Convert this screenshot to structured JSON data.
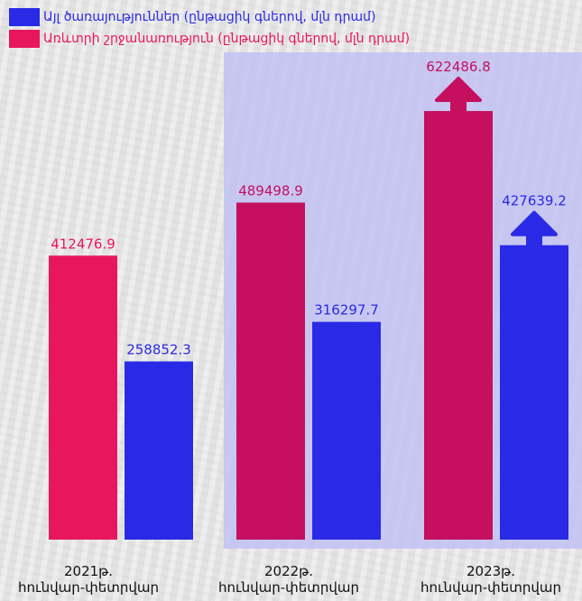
{
  "colors": {
    "blue": "#2a2ae6",
    "red": "#e8175d",
    "magenta": "#c4105f",
    "background": "#e9e9e9",
    "highlight": "#bebef5"
  },
  "legend": {
    "items": [
      {
        "label": "Այլ ծառայություններ (ընթացիկ գներով, մլն դրամ)",
        "color": "#2a2ae6"
      },
      {
        "label": "Առևտրի շրջանառություն (ընթացիկ գներով, մլն դրամ)",
        "color": "#e8175d"
      }
    ]
  },
  "chart_data": {
    "type": "bar",
    "categories": [
      {
        "line1": "2021թ.",
        "line2": "հունվար-փետրվար"
      },
      {
        "line1": "2022թ.",
        "line2": "հունվար-փետրվար"
      },
      {
        "line1": "2023թ.",
        "line2": "հունվար-փետրվար"
      }
    ],
    "series": [
      {
        "name": "Առևտրի շրջանառություն (ընթացիկ գներով, մլն դրամ)",
        "values": [
          412476.9,
          489498.9,
          622486.8
        ],
        "labels": [
          "412476.9",
          "489498.9",
          "622486.8"
        ],
        "colors": [
          "#e8175d",
          "#c4105f",
          "#c4105f"
        ]
      },
      {
        "name": "Այլ ծառայություններ (ընթացիկ գներով, մլն դրամ)",
        "values": [
          258852.3,
          316297.7,
          427639.2
        ],
        "labels": [
          "258852.3",
          "316297.7",
          "427639.2"
        ],
        "colors": [
          "#2a2ae6",
          "#2a2ae6",
          "#2a2ae6"
        ]
      }
    ],
    "highlighted_categories": [
      1,
      2
    ],
    "growth_arrows": [
      {
        "series": 0,
        "category": 2
      },
      {
        "series": 1,
        "category": 2
      }
    ],
    "ylim": [
      0,
      700000
    ],
    "grid": false,
    "legend_position": "top-left"
  }
}
